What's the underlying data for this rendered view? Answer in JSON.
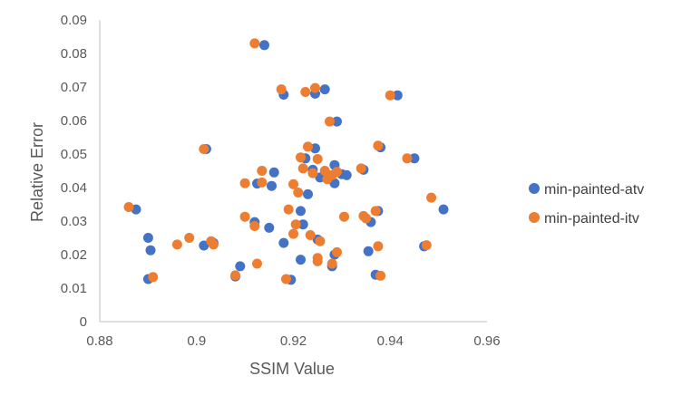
{
  "chart_data": {
    "type": "scatter",
    "xlabel": "SSIM Value",
    "ylabel": "Relative Error",
    "xlim": [
      0.88,
      0.96
    ],
    "ylim": [
      0,
      0.09
    ],
    "x_ticks": [
      "0.88",
      "0.9",
      "0.92",
      "0.94",
      "0.96"
    ],
    "y_ticks": [
      "0",
      "0.01",
      "0.02",
      "0.03",
      "0.04",
      "0.05",
      "0.06",
      "0.07",
      "0.08",
      "0.09"
    ],
    "grid": false,
    "legend_position": "right",
    "series": [
      {
        "name": "min-painted-atv",
        "color": "#4472C4",
        "points": [
          [
            0.8875,
            0.0335
          ],
          [
            0.89,
            0.0127
          ],
          [
            0.89,
            0.025
          ],
          [
            0.8905,
            0.0213
          ],
          [
            0.9015,
            0.0227
          ],
          [
            0.902,
            0.0515
          ],
          [
            0.9035,
            0.0235
          ],
          [
            0.908,
            0.0135
          ],
          [
            0.909,
            0.0165
          ],
          [
            0.912,
            0.0297
          ],
          [
            0.9125,
            0.0412
          ],
          [
            0.914,
            0.0825
          ],
          [
            0.915,
            0.028
          ],
          [
            0.9155,
            0.0405
          ],
          [
            0.916,
            0.0445
          ],
          [
            0.918,
            0.0235
          ],
          [
            0.918,
            0.0677
          ],
          [
            0.9195,
            0.0125
          ],
          [
            0.9215,
            0.0185
          ],
          [
            0.9215,
            0.033
          ],
          [
            0.922,
            0.029
          ],
          [
            0.9225,
            0.0487
          ],
          [
            0.923,
            0.038
          ],
          [
            0.924,
            0.0453
          ],
          [
            0.9245,
            0.068
          ],
          [
            0.9245,
            0.0517
          ],
          [
            0.925,
            0.0245
          ],
          [
            0.9255,
            0.043
          ],
          [
            0.9265,
            0.0693
          ],
          [
            0.928,
            0.0165
          ],
          [
            0.9285,
            0.02
          ],
          [
            0.9285,
            0.0413
          ],
          [
            0.9285,
            0.0467
          ],
          [
            0.929,
            0.0597
          ],
          [
            0.93,
            0.044
          ],
          [
            0.931,
            0.0437
          ],
          [
            0.9345,
            0.0453
          ],
          [
            0.9355,
            0.021
          ],
          [
            0.936,
            0.0297
          ],
          [
            0.937,
            0.014
          ],
          [
            0.9375,
            0.033
          ],
          [
            0.938,
            0.052
          ],
          [
            0.9415,
            0.0675
          ],
          [
            0.945,
            0.0487
          ],
          [
            0.947,
            0.0225
          ],
          [
            0.951,
            0.0335
          ]
        ]
      },
      {
        "name": "min-painted-itv",
        "color": "#ED7D31",
        "points": [
          [
            0.886,
            0.0342
          ],
          [
            0.891,
            0.0133
          ],
          [
            0.896,
            0.023
          ],
          [
            0.8985,
            0.025
          ],
          [
            0.9015,
            0.0515
          ],
          [
            0.903,
            0.024
          ],
          [
            0.9035,
            0.023
          ],
          [
            0.908,
            0.0138
          ],
          [
            0.91,
            0.0413
          ],
          [
            0.91,
            0.0313
          ],
          [
            0.912,
            0.0285
          ],
          [
            0.9125,
            0.0173
          ],
          [
            0.9135,
            0.045
          ],
          [
            0.9135,
            0.0415
          ],
          [
            0.912,
            0.083
          ],
          [
            0.9175,
            0.0693
          ],
          [
            0.9185,
            0.0127
          ],
          [
            0.919,
            0.0335
          ],
          [
            0.92,
            0.041
          ],
          [
            0.92,
            0.0262
          ],
          [
            0.9205,
            0.029
          ],
          [
            0.921,
            0.0385
          ],
          [
            0.9215,
            0.049
          ],
          [
            0.922,
            0.0457
          ],
          [
            0.9225,
            0.0685
          ],
          [
            0.923,
            0.0522
          ],
          [
            0.9235,
            0.0258
          ],
          [
            0.924,
            0.0443
          ],
          [
            0.9245,
            0.0697
          ],
          [
            0.925,
            0.0485
          ],
          [
            0.925,
            0.019
          ],
          [
            0.925,
            0.018
          ],
          [
            0.9255,
            0.024
          ],
          [
            0.9265,
            0.045
          ],
          [
            0.927,
            0.0425
          ],
          [
            0.9275,
            0.0597
          ],
          [
            0.928,
            0.0437
          ],
          [
            0.928,
            0.0173
          ],
          [
            0.929,
            0.0207
          ],
          [
            0.929,
            0.0447
          ],
          [
            0.9305,
            0.0313
          ],
          [
            0.934,
            0.0457
          ],
          [
            0.9345,
            0.0315
          ],
          [
            0.935,
            0.0308
          ],
          [
            0.937,
            0.033
          ],
          [
            0.9375,
            0.0225
          ],
          [
            0.938,
            0.0137
          ],
          [
            0.9375,
            0.0525
          ],
          [
            0.94,
            0.0675
          ],
          [
            0.9435,
            0.0487
          ],
          [
            0.9475,
            0.0228
          ],
          [
            0.9485,
            0.037
          ]
        ]
      }
    ]
  }
}
